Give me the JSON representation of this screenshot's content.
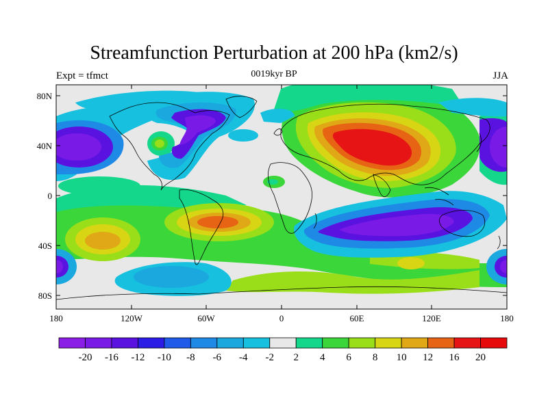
{
  "title": "Streamfunction Perturbation at 200 hPa (km2/s)",
  "subtitle_left": "Expt = tfmct",
  "subtitle_center": "0019kyr BP",
  "subtitle_right": "JJA",
  "y_ticks": [
    "80N",
    "40N",
    "0",
    "40S",
    "80S"
  ],
  "x_ticks": [
    "180",
    "120W",
    "60W",
    "0",
    "60E",
    "120E",
    "180"
  ],
  "colorbar": {
    "labels": [
      "-20",
      "-16",
      "-12",
      "-10",
      "-8",
      "-6",
      "-4",
      "-2",
      "2",
      "4",
      "6",
      "8",
      "10",
      "12",
      "16",
      "20"
    ],
    "colors": [
      "#8a1ee6",
      "#7a1ae6",
      "#5a12e0",
      "#2b1de6",
      "#1f5ae8",
      "#1f8ae6",
      "#1aa8de",
      "#16c0de",
      "#e8e8e8",
      "#14d78c",
      "#3ad63a",
      "#9ade1a",
      "#d8d614",
      "#e0a816",
      "#e66414",
      "#e61414",
      "#e60a0a"
    ]
  },
  "colors": {
    "background": "#e8e8e8",
    "frame": "#000000"
  }
}
